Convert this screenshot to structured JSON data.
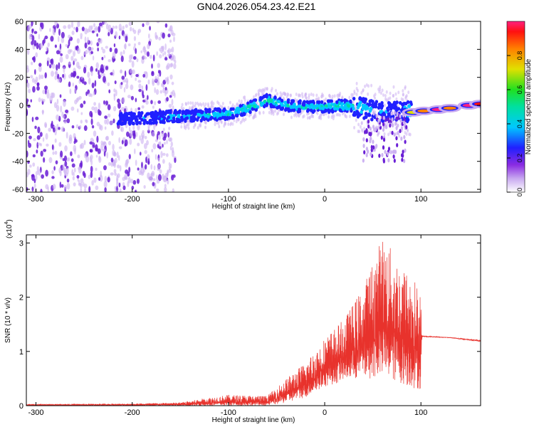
{
  "title": "GN04.2026.054.23.42.E21",
  "chart_data": [
    {
      "type": "heatmap",
      "title": "GN04.2026.054.23.42.E21",
      "xlabel": "Height of straight line (km)",
      "ylabel": "Frequency (Hz)",
      "xlim": [
        -310,
        162
      ],
      "ylim": [
        -62,
        60
      ],
      "x_ticks": [
        -300,
        -200,
        -100,
        0,
        100
      ],
      "x_tick_labels": [
        "-300",
        "-200",
        "-100",
        "0",
        "100"
      ],
      "y_ticks": [
        60,
        40,
        20,
        0,
        -20,
        -40,
        -60
      ],
      "y_tick_labels": [
        "60",
        "40",
        "20",
        "0",
        "-20",
        "-40",
        "-60"
      ],
      "colorbar": {
        "label": "Normalized spectral amplitude",
        "range": [
          0,
          1
        ],
        "ticks": [
          0.0,
          0.2,
          0.4,
          0.6,
          0.8
        ],
        "tick_labels": [
          "0.0",
          "0.2",
          "0.4",
          "0.6",
          "0.8"
        ]
      },
      "ridge": {
        "description_x": [
          -215,
          -160,
          -130,
          -100,
          -80,
          -60,
          -40,
          -20,
          0,
          20,
          40,
          60,
          80,
          95,
          120,
          162
        ],
        "frequency_hz": [
          -10,
          -8,
          -7,
          -6,
          -2,
          4,
          0,
          -1,
          -1,
          0,
          -2,
          -5,
          -4,
          -5,
          -1,
          1
        ],
        "peak_amplitude": [
          0.25,
          0.35,
          0.4,
          0.45,
          0.5,
          0.5,
          0.45,
          0.45,
          0.45,
          0.5,
          0.4,
          0.3,
          0.3,
          0.7,
          0.95,
          0.95
        ]
      },
      "noise_region_x": [
        -310,
        -155
      ]
    },
    {
      "type": "line",
      "xlabel": "Height of straight line (km)",
      "ylabel": "SNR (10 * v/v)",
      "y_multiplier": "(x10^4)",
      "y_multiplier_base": "(x10",
      "y_multiplier_exp": "4",
      "y_multiplier_tail": ")",
      "xlim": [
        -310,
        162
      ],
      "ylim": [
        0,
        3.15
      ],
      "x_ticks": [
        -300,
        -200,
        -100,
        0,
        100
      ],
      "x_tick_labels": [
        "-300",
        "-200",
        "-100",
        "0",
        "100"
      ],
      "y_ticks": [
        0,
        1,
        2,
        3
      ],
      "y_tick_labels": [
        "0",
        "1",
        "2",
        "3"
      ],
      "series": [
        {
          "name": "SNR",
          "color": "#e8322c",
          "envelope_x": [
            -310,
            -200,
            -150,
            -120,
            -100,
            -60,
            -40,
            -20,
            0,
            20,
            40,
            60,
            80,
            95,
            100,
            101,
            130,
            162
          ],
          "envelope_min": [
            0.0,
            0.0,
            0.0,
            0.0,
            0.0,
            0.0,
            0.05,
            0.15,
            0.35,
            0.45,
            0.5,
            0.5,
            0.4,
            0.3,
            0.3,
            1.27,
            1.25,
            1.18
          ],
          "envelope_max": [
            0.03,
            0.04,
            0.06,
            0.15,
            0.2,
            0.18,
            0.5,
            0.8,
            1.25,
            1.6,
            2.2,
            3.15,
            2.6,
            2.3,
            2.0,
            1.29,
            1.26,
            1.21
          ]
        }
      ]
    }
  ],
  "colors": {
    "snr_line": "#e8322c",
    "scatter_dense": "#6a1fd6",
    "scatter_light": "#cdb3f2"
  }
}
